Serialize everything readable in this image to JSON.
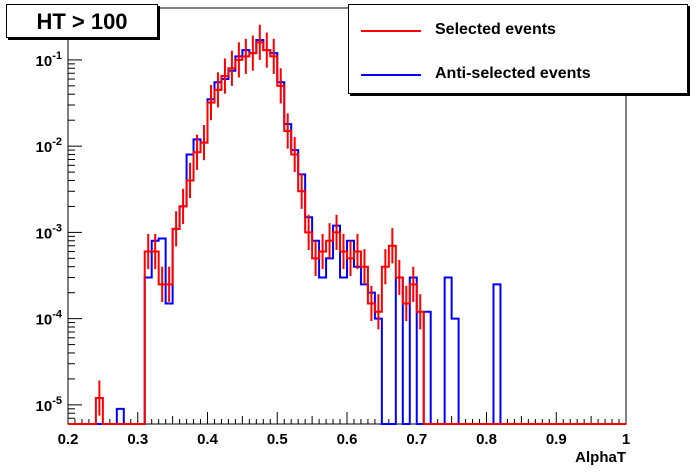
{
  "title": "HT > 100",
  "legend": {
    "selected": {
      "label": "Selected events",
      "color": "#ff0000"
    },
    "anti": {
      "label": "Anti-selected events",
      "color": "#0000ff"
    }
  },
  "chart_data": {
    "type": "histogram",
    "xlabel": "AlphaT",
    "ylabel": "",
    "xlim": [
      0.2,
      1.0
    ],
    "ylim": [
      6e-06,
      0.4
    ],
    "yscale": "log",
    "grid": false,
    "x_ticks": [
      "0.2",
      "0.3",
      "0.4",
      "0.5",
      "0.6",
      "0.7",
      "0.8",
      "0.9",
      "1"
    ],
    "y_ticks": [
      {
        "base": "10",
        "exp": "-5"
      },
      {
        "base": "10",
        "exp": "-4"
      },
      {
        "base": "10",
        "exp": "-3"
      },
      {
        "base": "10",
        "exp": "-2"
      },
      {
        "base": "10",
        "exp": "-1"
      }
    ],
    "bin_edges_start": 0.2,
    "bin_width": 0.01,
    "series": [
      {
        "name": "Anti-selected events",
        "color": "#0000ff",
        "values": [
          0,
          0,
          0,
          0,
          0,
          0,
          0,
          9e-06,
          0,
          0,
          0,
          0.0003,
          0.0008,
          0.00085,
          0.00015,
          0.0011,
          0.002,
          0.008,
          0.012,
          0.011,
          0.035,
          0.055,
          0.06,
          0.075,
          0.11,
          0.13,
          0.12,
          0.17,
          0.13,
          0.12,
          0.055,
          0.018,
          0.009,
          0.0047,
          0.0015,
          0.0008,
          0.0003,
          0.0005,
          0.0012,
          0.0003,
          0.0008,
          0.0004,
          0.00025,
          0.0002,
          0.0001,
          0,
          0,
          0.0003,
          0,
          0.0003,
          0,
          0.00012,
          0,
          0,
          0.0003,
          0.0001,
          0,
          0,
          0,
          0,
          0,
          0.00025,
          0,
          0,
          0,
          0,
          0,
          0,
          0,
          0,
          0,
          0,
          0,
          0,
          0,
          0,
          0,
          0,
          0,
          0,
          0
        ],
        "note": ""
      },
      {
        "name": "Selected events",
        "color": "#ff0000",
        "values": [
          0,
          0,
          0,
          0,
          1.2e-05,
          0,
          0,
          0,
          0,
          0,
          0,
          0.0006,
          0.0006,
          0.00025,
          0.00025,
          0.0011,
          0.002,
          0.004,
          0.0085,
          0.011,
          0.032,
          0.045,
          0.065,
          0.08,
          0.1,
          0.11,
          0.12,
          0.16,
          0.13,
          0.11,
          0.05,
          0.015,
          0.008,
          0.003,
          0.001,
          0.0005,
          0.0006,
          0.0008,
          0.001,
          0.0006,
          0.0005,
          0.0006,
          0.0004,
          0.00015,
          0.00012,
          0.0004,
          0.0007,
          0.0003,
          0.00015,
          0.00025,
          0.00012,
          0,
          0,
          0,
          0,
          0,
          0,
          0,
          0,
          0,
          0,
          0,
          0,
          0,
          0,
          0,
          0,
          0,
          0,
          0,
          0,
          0,
          0,
          0,
          0,
          0,
          0,
          0,
          0,
          0,
          0
        ],
        "note": ""
      }
    ]
  }
}
